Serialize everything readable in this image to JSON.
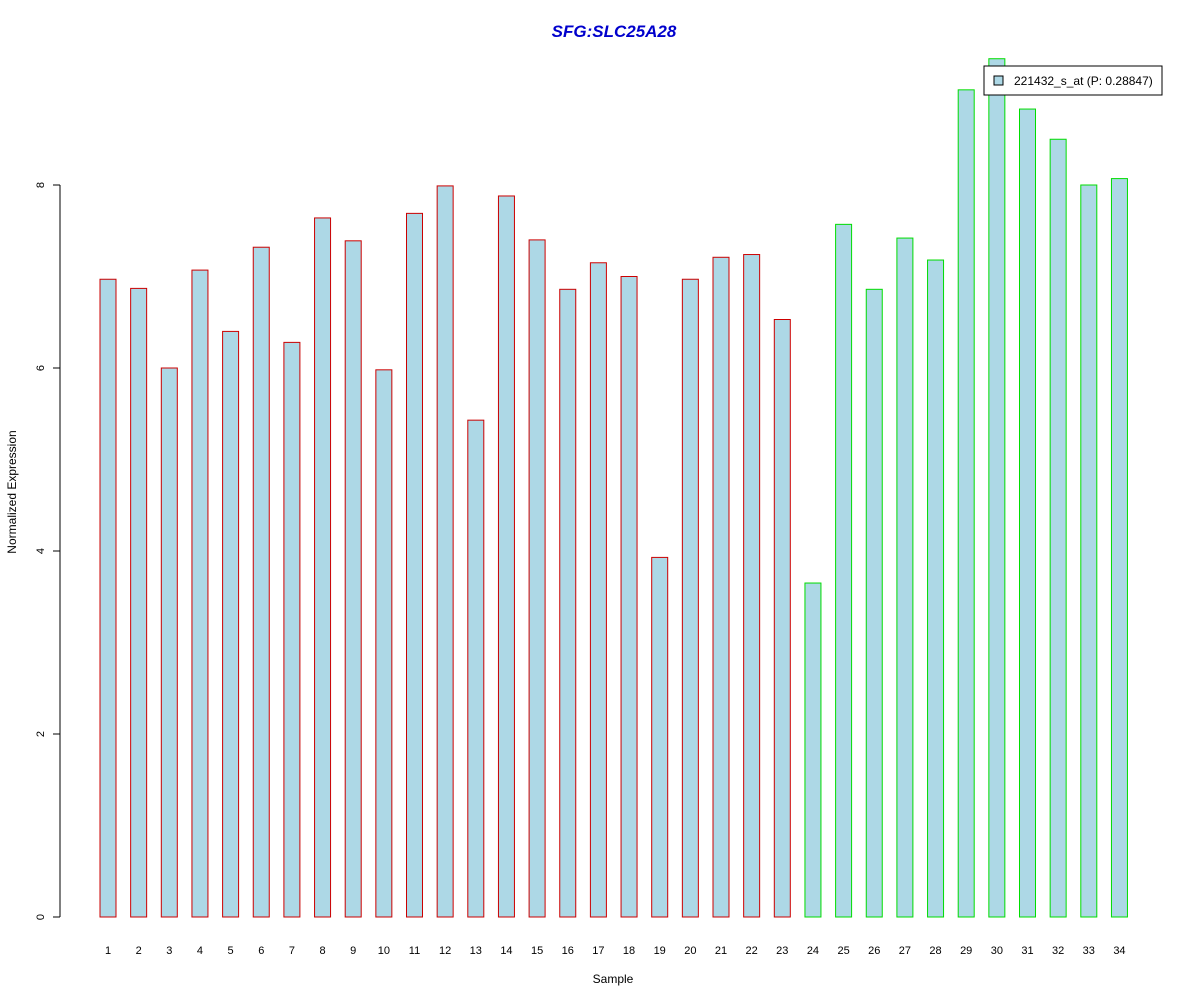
{
  "chart_data": {
    "type": "bar",
    "title": "SFG:SLC25A28",
    "xlabel": "Sample",
    "ylabel": "Normalized Expression",
    "categories": [
      "1",
      "2",
      "3",
      "4",
      "5",
      "6",
      "7",
      "8",
      "9",
      "10",
      "11",
      "12",
      "13",
      "14",
      "15",
      "16",
      "17",
      "18",
      "19",
      "20",
      "21",
      "22",
      "23",
      "24",
      "25",
      "26",
      "27",
      "28",
      "29",
      "30",
      "31",
      "32",
      "33",
      "34"
    ],
    "series": [
      {
        "name": "221432_s_at (P: 0.28847)",
        "values": [
          6.97,
          6.87,
          6.0,
          7.07,
          6.4,
          7.32,
          6.28,
          7.64,
          7.39,
          5.98,
          7.69,
          7.99,
          5.43,
          7.88,
          7.4,
          6.86,
          7.15,
          7.0,
          3.93,
          6.97,
          7.21,
          7.24,
          6.53,
          3.65,
          7.57,
          6.86,
          7.42,
          7.18,
          9.04,
          9.38,
          8.83,
          8.5,
          8.0,
          8.07
        ]
      }
    ],
    "groups": [
      1,
      1,
      1,
      1,
      1,
      1,
      1,
      1,
      1,
      1,
      1,
      1,
      1,
      1,
      1,
      1,
      1,
      1,
      1,
      1,
      1,
      1,
      1,
      2,
      2,
      2,
      2,
      2,
      2,
      2,
      2,
      2,
      2,
      2
    ],
    "yticks": [
      0,
      2,
      4,
      6,
      8
    ],
    "ylim": [
      0,
      9.5
    ],
    "grid": false,
    "legend_position": "top-right",
    "colors": {
      "title": "#0000cc",
      "bar_fill": "#add8e6",
      "group1_border": "#cc0000",
      "group2_border": "#00dd00",
      "axis": "#000000"
    }
  }
}
